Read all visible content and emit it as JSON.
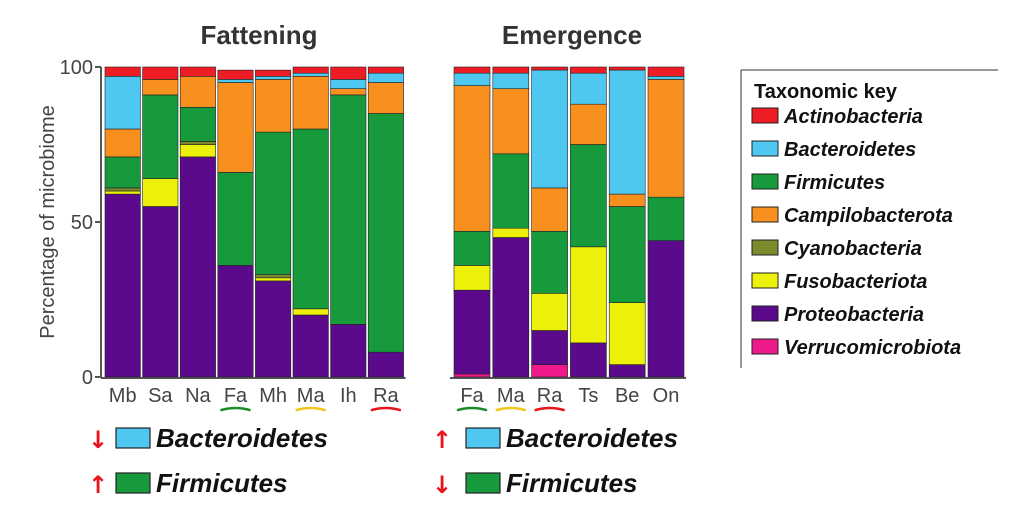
{
  "colors": {
    "Actinobacteria": "#ee1c25",
    "Bacteroidetes": "#4ec8f0",
    "Firmicutes": "#169a3c",
    "Campilobacterota": "#f7901e",
    "Cyanobacteria": "#7a8a2c",
    "Fusobacteriota": "#ecf00a",
    "Proteobacteria": "#5b0a8c",
    "Verrucomicrobiota": "#ee1a8c"
  },
  "chart_data": [
    {
      "type": "bar",
      "stacked": true,
      "title": "Fattening",
      "ylabel": "Percentage of microbiome",
      "ylim": [
        0,
        100
      ],
      "yticks": [
        "0",
        "50",
        "100"
      ],
      "categories": [
        "Mb",
        "Sa",
        "Na",
        "Fa",
        "Mh",
        "Ma",
        "Ih",
        "Ra"
      ],
      "underlined": {
        "Fa": "#1a8c2a",
        "Ma": "#f0c81e",
        "Ra": "#e8141b"
      },
      "series": [
        {
          "name": "Verrucomicrobiota",
          "values": [
            0,
            0,
            0,
            0,
            0,
            0,
            0,
            0
          ]
        },
        {
          "name": "Proteobacteria",
          "values": [
            59,
            55,
            71,
            36,
            31,
            20,
            17,
            8
          ]
        },
        {
          "name": "Fusobacteriota",
          "values": [
            1,
            9,
            4,
            0,
            1,
            2,
            0,
            0
          ]
        },
        {
          "name": "Cyanobacteria",
          "values": [
            1,
            0,
            1,
            0,
            1,
            0,
            0,
            0
          ]
        },
        {
          "name": "Firmicutes",
          "values": [
            10,
            27,
            11,
            30,
            46,
            58,
            74,
            77
          ]
        },
        {
          "name": "Campilobacterota",
          "values": [
            9,
            5,
            10,
            29,
            17,
            17,
            2,
            10
          ]
        },
        {
          "name": "Bacteroidetes",
          "values": [
            17,
            0,
            0,
            1,
            1,
            1,
            3,
            3
          ]
        },
        {
          "name": "Actinobacteria",
          "values": [
            3,
            4,
            3,
            3,
            2,
            2,
            4,
            2
          ]
        }
      ]
    },
    {
      "type": "bar",
      "stacked": true,
      "title": "Emergence",
      "ylim": [
        0,
        100
      ],
      "categories": [
        "Fa",
        "Ma",
        "Ra",
        "Ts",
        "Be",
        "On"
      ],
      "underlined": {
        "Fa": "#1a8c2a",
        "Ma": "#f0c81e",
        "Ra": "#e8141b"
      },
      "series": [
        {
          "name": "Verrucomicrobiota",
          "values": [
            1,
            0,
            4,
            0,
            0,
            0
          ]
        },
        {
          "name": "Proteobacteria",
          "values": [
            27,
            45,
            11,
            11,
            4,
            44
          ]
        },
        {
          "name": "Fusobacteriota",
          "values": [
            8,
            3,
            12,
            31,
            20,
            0
          ]
        },
        {
          "name": "Cyanobacteria",
          "values": [
            0,
            0,
            0,
            0,
            0,
            0
          ]
        },
        {
          "name": "Firmicutes",
          "values": [
            11,
            24,
            20,
            33,
            31,
            14
          ]
        },
        {
          "name": "Campilobacterota",
          "values": [
            47,
            21,
            14,
            13,
            4,
            38
          ]
        },
        {
          "name": "Bacteroidetes",
          "values": [
            4,
            5,
            38,
            10,
            40,
            1
          ]
        },
        {
          "name": "Actinobacteria",
          "values": [
            2,
            2,
            1,
            2,
            1,
            3
          ]
        }
      ]
    }
  ],
  "legend": {
    "title": "Taxonomic key",
    "items": [
      "Actinobacteria",
      "Bacteroidetes",
      "Firmicutes",
      "Campilobacterota",
      "Cyanobacteria",
      "Fusobacteriota",
      "Proteobacteria",
      "Verrucomicrobiota"
    ]
  },
  "annotations": {
    "left": [
      {
        "arrow": "↓",
        "label": "Bacteroidetes",
        "color_key": "Bacteroidetes"
      },
      {
        "arrow": "↑",
        "label": "Firmicutes",
        "color_key": "Firmicutes"
      }
    ],
    "right": [
      {
        "arrow": "↑",
        "label": "Bacteroidetes",
        "color_key": "Bacteroidetes"
      },
      {
        "arrow": "↓",
        "label": "Firmicutes",
        "color_key": "Firmicutes"
      }
    ]
  }
}
